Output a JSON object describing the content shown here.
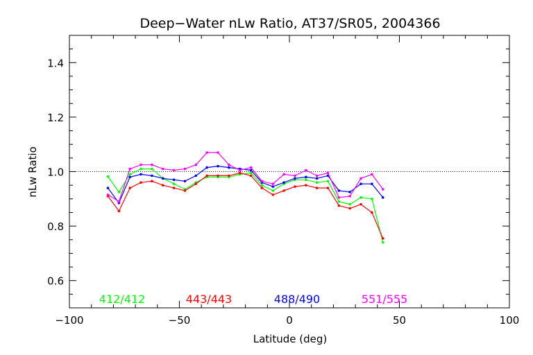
{
  "chart_data": {
    "type": "line",
    "title": "Deep−Water nLw Ratio, AT37/SR05, 2004366",
    "xlabel": "Latitude (deg)",
    "ylabel": "nLw Ratio",
    "xlim": [
      -100,
      100
    ],
    "ylim": [
      0.5,
      1.5
    ],
    "xticks": [
      "−100",
      "−50",
      "0",
      "50",
      "100"
    ],
    "yticks": [
      "0.6",
      "0.8",
      "1.0",
      "1.2",
      "1.4"
    ],
    "reference_line": {
      "y": 1.0,
      "style": "dotted"
    },
    "grid": false,
    "x": [
      -82.5,
      -77.5,
      -72.5,
      -67.5,
      -62.5,
      -57.5,
      -52.5,
      -47.5,
      -42.5,
      -37.5,
      -32.5,
      -27.5,
      -22.5,
      -17.5,
      -12.5,
      -7.5,
      -2.5,
      2.5,
      7.5,
      12.5,
      17.5,
      22.5,
      27.5,
      32.5,
      37.5,
      42.5
    ],
    "series": [
      {
        "name": "412/412",
        "color": "#00ff00",
        "values": [
          0.982,
          0.925,
          0.99,
          1.01,
          1.01,
          0.975,
          0.955,
          0.935,
          0.96,
          0.98,
          0.98,
          0.98,
          0.99,
          0.995,
          0.95,
          0.93,
          0.955,
          0.97,
          0.97,
          0.96,
          0.965,
          0.89,
          0.88,
          0.905,
          0.9,
          0.74
        ]
      },
      {
        "name": "443/443",
        "color": "#ff0000",
        "values": [
          0.91,
          0.855,
          0.94,
          0.96,
          0.965,
          0.95,
          0.94,
          0.93,
          0.955,
          0.985,
          0.985,
          0.985,
          0.995,
          0.985,
          0.94,
          0.915,
          0.93,
          0.945,
          0.95,
          0.94,
          0.94,
          0.875,
          0.865,
          0.88,
          0.85,
          0.755
        ]
      },
      {
        "name": "488/490",
        "color": "#0000ff",
        "values": [
          0.94,
          0.885,
          0.98,
          0.99,
          0.985,
          0.975,
          0.97,
          0.965,
          0.985,
          1.015,
          1.02,
          1.015,
          1.01,
          1.005,
          0.96,
          0.945,
          0.96,
          0.975,
          0.98,
          0.975,
          0.985,
          0.93,
          0.925,
          0.955,
          0.955,
          0.905
        ]
      },
      {
        "name": "551/555",
        "color": "#ff00ff",
        "values": [
          0.915,
          0.89,
          1.01,
          1.025,
          1.025,
          1.01,
          1.005,
          1.01,
          1.025,
          1.07,
          1.07,
          1.025,
          1.005,
          1.015,
          0.965,
          0.955,
          0.99,
          0.985,
          1.005,
          0.985,
          0.995,
          0.905,
          0.91,
          0.975,
          0.99,
          0.935
        ]
      }
    ]
  }
}
